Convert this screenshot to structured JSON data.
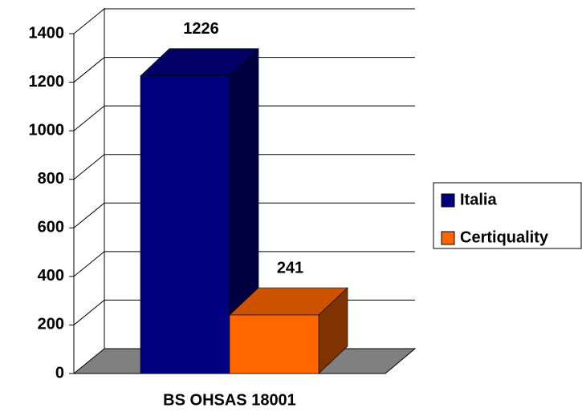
{
  "chart_data": {
    "type": "bar3d",
    "categories": [
      "BS OHSAS 18001"
    ],
    "series": [
      {
        "name": "Italia",
        "color": "#000080",
        "values": [
          1226
        ]
      },
      {
        "name": "Certiquality",
        "color": "#ff6600",
        "values": [
          241
        ]
      }
    ],
    "ylim": [
      0,
      1400
    ],
    "yticks": [
      0,
      200,
      400,
      600,
      800,
      1000,
      1200,
      1400
    ],
    "grid": true,
    "legend": "right"
  }
}
